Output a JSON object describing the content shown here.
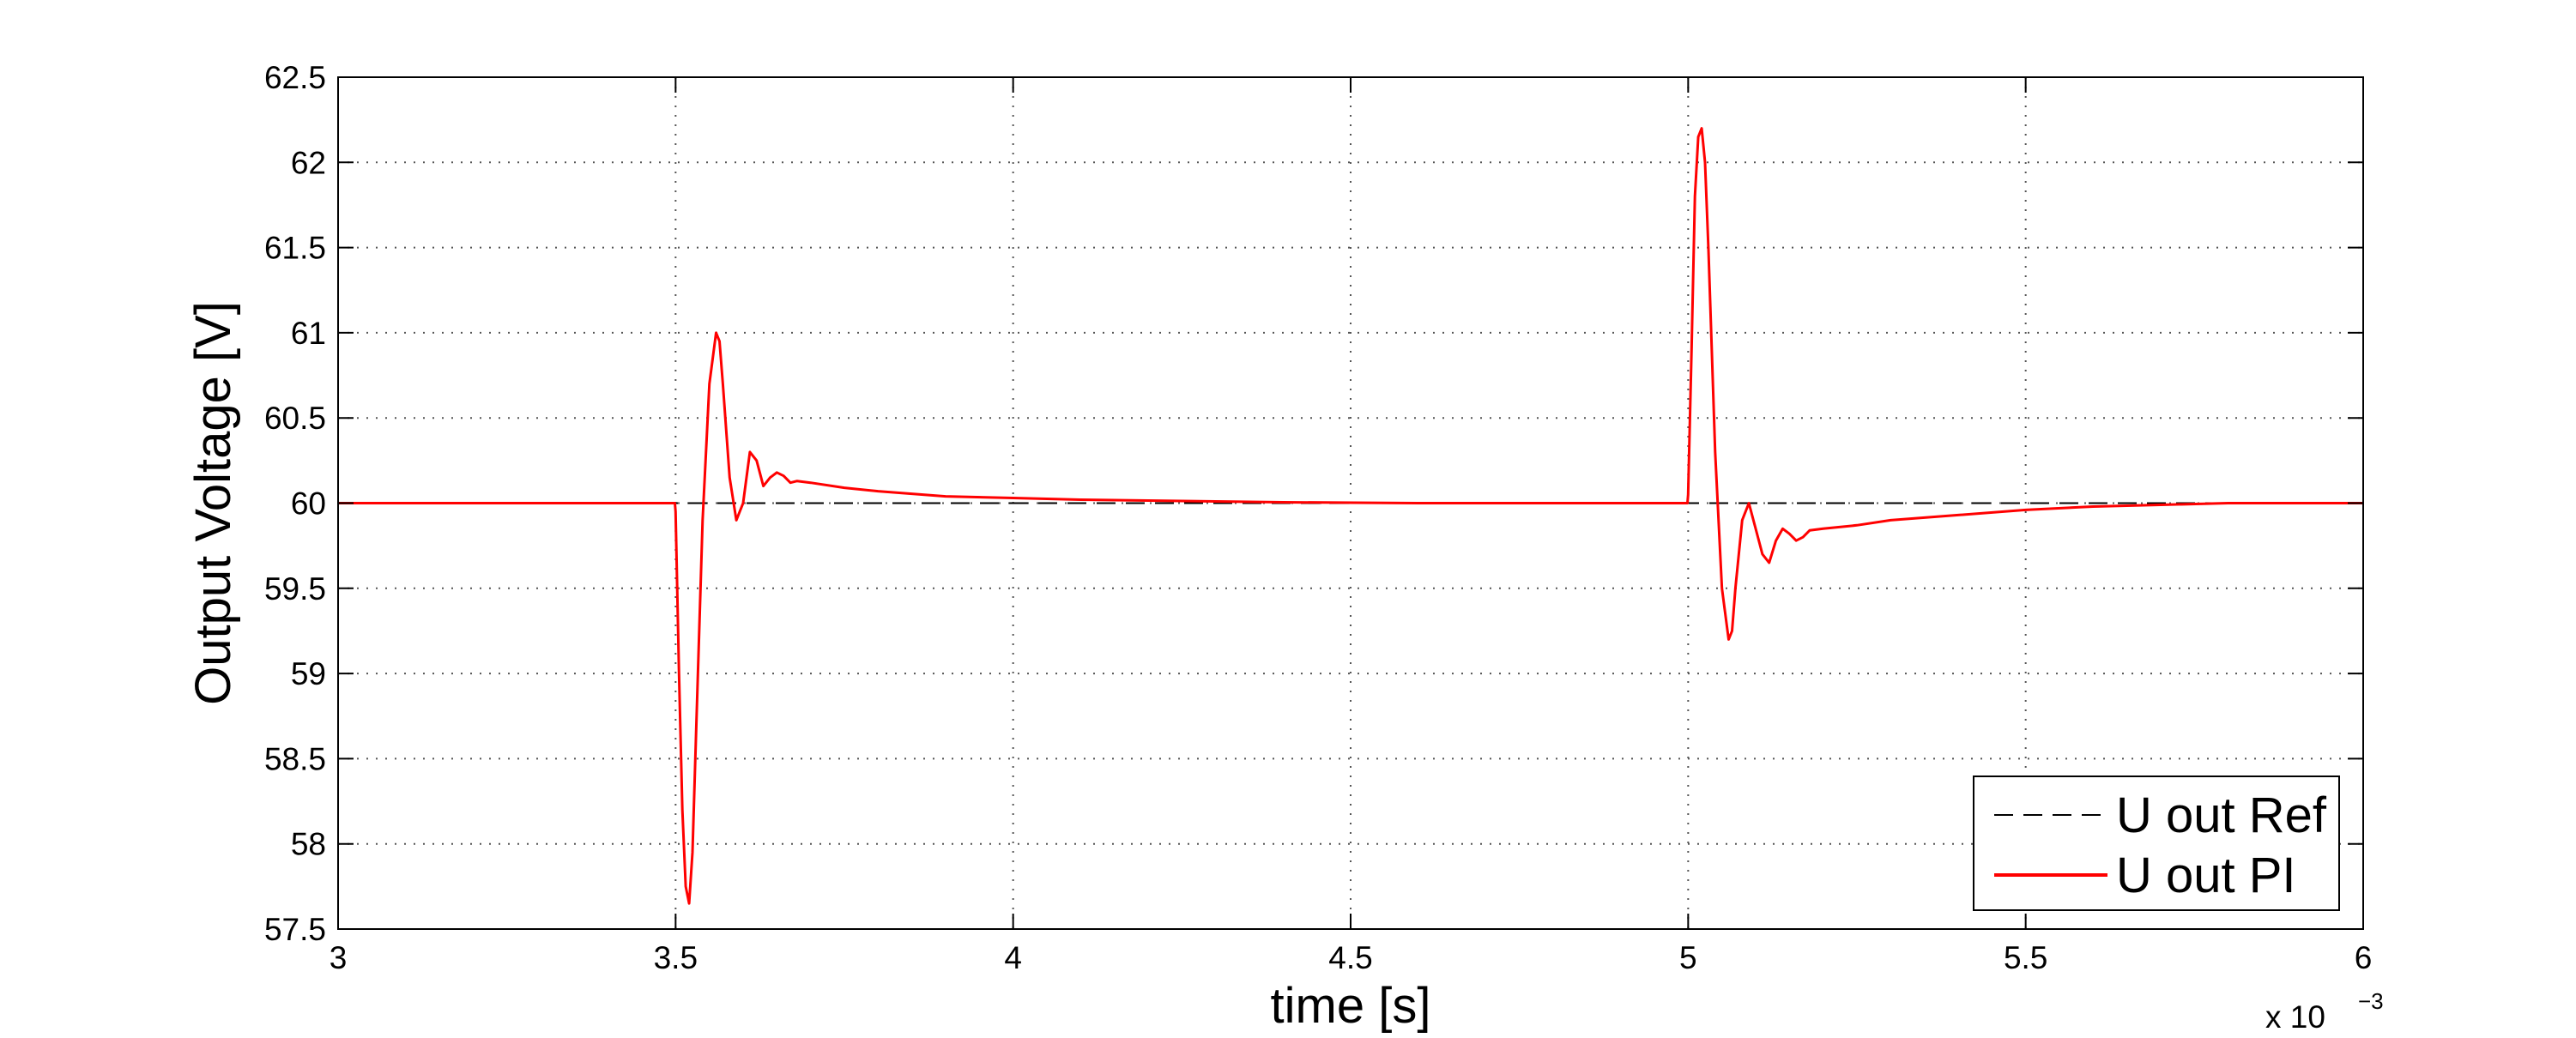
{
  "chart_data": {
    "type": "line",
    "xlabel": "time [s]",
    "ylabel": "Output Voltage [V]",
    "x_exponent_label": "x 10",
    "x_exponent_power": "−3",
    "xlim": [
      3,
      6
    ],
    "ylim": [
      57.5,
      62.5
    ],
    "x_tick_labels": [
      "3",
      "3.5",
      "4",
      "4.5",
      "5",
      "5.5",
      "6"
    ],
    "x_tick_values": [
      3,
      3.5,
      4,
      4.5,
      5,
      5.5,
      6
    ],
    "y_tick_labels": [
      "57.5",
      "58",
      "58.5",
      "59",
      "59.5",
      "60",
      "60.5",
      "61",
      "61.5",
      "62",
      "62.5"
    ],
    "y_tick_values": [
      57.5,
      58,
      58.5,
      59,
      59.5,
      60,
      60.5,
      61,
      61.5,
      62,
      62.5
    ],
    "grid": true,
    "legend_position": "bottom-right",
    "series": [
      {
        "name": "U out Ref",
        "color": "#000000",
        "style": "dashed",
        "x": [
          3,
          6
        ],
        "y": [
          60,
          60
        ]
      },
      {
        "name": "U out PI",
        "color": "#ff0000",
        "style": "solid",
        "x": [
          3.0,
          3.499,
          3.5,
          3.505,
          3.51,
          3.515,
          3.52,
          3.525,
          3.53,
          3.54,
          3.55,
          3.56,
          3.565,
          3.57,
          3.58,
          3.59,
          3.6,
          3.61,
          3.62,
          3.63,
          3.64,
          3.65,
          3.66,
          3.67,
          3.68,
          3.7,
          3.75,
          3.8,
          3.9,
          4.0,
          4.1,
          4.2,
          4.3,
          4.4,
          4.6,
          4.8,
          4.999,
          5.0,
          5.005,
          5.01,
          5.015,
          5.02,
          5.025,
          5.03,
          5.04,
          5.05,
          5.06,
          5.065,
          5.07,
          5.08,
          5.09,
          5.1,
          5.11,
          5.12,
          5.13,
          5.14,
          5.15,
          5.16,
          5.17,
          5.18,
          5.2,
          5.25,
          5.3,
          5.4,
          5.5,
          5.6,
          5.7,
          5.8,
          6.0
        ],
        "y": [
          60.0,
          60.0,
          59.95,
          59.0,
          58.2,
          57.75,
          57.65,
          57.95,
          58.6,
          59.9,
          60.7,
          61.0,
          60.95,
          60.7,
          60.15,
          59.9,
          60.0,
          60.3,
          60.25,
          60.1,
          60.15,
          60.18,
          60.16,
          60.12,
          60.13,
          60.12,
          60.09,
          60.07,
          60.04,
          60.03,
          60.02,
          60.015,
          60.01,
          60.005,
          60.0,
          60.0,
          60.0,
          60.05,
          60.9,
          61.8,
          62.15,
          62.2,
          62.0,
          61.5,
          60.3,
          59.5,
          59.2,
          59.25,
          59.5,
          59.9,
          60.0,
          59.85,
          59.7,
          59.65,
          59.78,
          59.85,
          59.82,
          59.78,
          59.8,
          59.84,
          59.85,
          59.87,
          59.9,
          59.93,
          59.96,
          59.98,
          59.99,
          60.0,
          60.0
        ]
      }
    ]
  }
}
